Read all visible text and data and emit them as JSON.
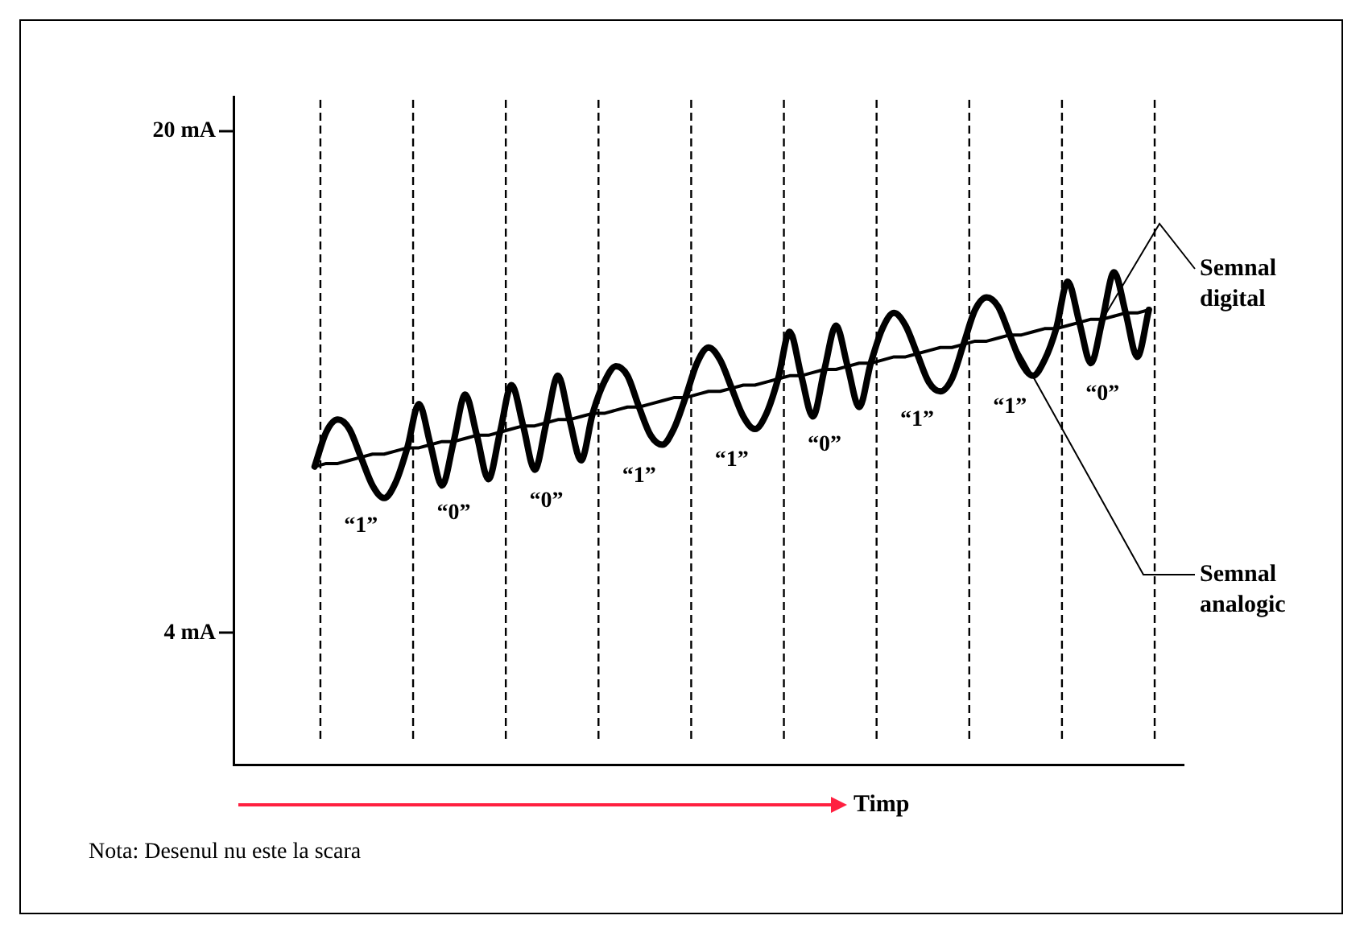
{
  "chart_data": {
    "type": "line",
    "xlabel": "Timp",
    "ylim": [
      -0.2,
      21.1
    ],
    "categories": [
      null,
      null,
      null,
      null,
      null,
      null,
      null,
      null,
      null,
      null,
      null,
      null,
      null,
      null,
      null,
      null,
      null,
      null,
      null,
      null,
      null,
      null,
      null,
      null,
      null,
      null,
      null,
      null,
      null,
      null,
      null,
      null,
      null,
      null,
      null,
      null,
      null,
      null,
      null,
      null,
      null,
      null,
      null,
      null,
      null,
      null,
      null,
      null,
      null,
      null,
      null,
      null,
      null,
      null,
      null,
      null,
      null,
      null,
      null,
      null,
      null,
      null,
      null,
      null,
      null,
      null,
      null,
      null,
      null,
      null,
      null,
      null,
      null,
      null,
      null,
      null,
      null,
      null,
      null,
      null,
      null,
      null,
      null
    ],
    "yticks": [
      {
        "value": 20,
        "label": "20 mA"
      },
      {
        "value": 4,
        "label": "4 mA"
      }
    ],
    "tick_labels": "y",
    "grid": false,
    "legend": false,
    "marker": "none",
    "line_style": "solid",
    "series": [
      {
        "name": "Semnal digital",
        "color": "#000000",
        "values": [
          null,
          null,
          null,
          null,
          null,
          null,
          null,
          9.3,
          10.4,
          10.8,
          10.5,
          9.6,
          8.7,
          8.3,
          8.8,
          9.9,
          11.3,
          10.0,
          8.7,
          10.1,
          11.6,
          10.3,
          8.9,
          10.4,
          11.9,
          10.6,
          9.2,
          10.7,
          12.2,
          10.8,
          9.5,
          11.0,
          12.0,
          12.5,
          12.2,
          11.2,
          10.3,
          10.0,
          10.5,
          11.5,
          12.6,
          13.1,
          12.7,
          11.8,
          10.9,
          10.5,
          11.0,
          12.1,
          13.6,
          12.2,
          10.9,
          12.4,
          13.8,
          12.5,
          11.2,
          12.6,
          13.7,
          14.2,
          13.8,
          12.9,
          12.0,
          11.7,
          12.1,
          13.2,
          14.3,
          14.7,
          14.4,
          13.5,
          12.6,
          12.2,
          12.7,
          13.7,
          15.2,
          13.9,
          12.6,
          14.0,
          15.5,
          14.2,
          12.8,
          14.3,
          null,
          null,
          null
        ]
      },
      {
        "name": "Semnal analogic",
        "color": "#000000",
        "values": [
          null,
          null,
          null,
          null,
          null,
          null,
          null,
          9.3,
          9.4,
          9.4,
          9.5,
          9.6,
          9.7,
          9.7,
          9.8,
          9.9,
          9.9,
          10.0,
          10.1,
          10.1,
          10.2,
          10.3,
          10.3,
          10.4,
          10.5,
          10.6,
          10.6,
          10.7,
          10.8,
          10.8,
          10.9,
          11.0,
          11.0,
          11.1,
          11.2,
          11.2,
          11.3,
          11.4,
          11.5,
          11.5,
          11.6,
          11.7,
          11.7,
          11.8,
          11.9,
          11.9,
          12.0,
          12.1,
          12.2,
          12.2,
          12.3,
          12.4,
          12.4,
          12.5,
          12.6,
          12.6,
          12.7,
          12.8,
          12.8,
          12.9,
          13.0,
          13.1,
          13.1,
          13.2,
          13.3,
          13.3,
          13.4,
          13.5,
          13.5,
          13.6,
          13.7,
          13.7,
          13.8,
          13.9,
          14.0,
          14.0,
          14.1,
          14.2,
          14.2,
          14.3,
          null,
          null,
          null
        ]
      }
    ],
    "annotations": [
      {
        "text": "“1”",
        "y": 7.4
      },
      {
        "text": "“0”",
        "y": 7.8
      },
      {
        "text": "“0”",
        "y": 8.2
      },
      {
        "text": "“1”",
        "y": 9.0
      },
      {
        "text": "“1”",
        "y": 9.5
      },
      {
        "text": "“0”",
        "y": 10.0
      },
      {
        "text": "“1”",
        "y": 10.8
      },
      {
        "text": "“1”",
        "y": 11.2
      },
      {
        "text": "“0”",
        "y": 11.6
      },
      "Nota: Desenul nu este la scara"
    ]
  }
}
